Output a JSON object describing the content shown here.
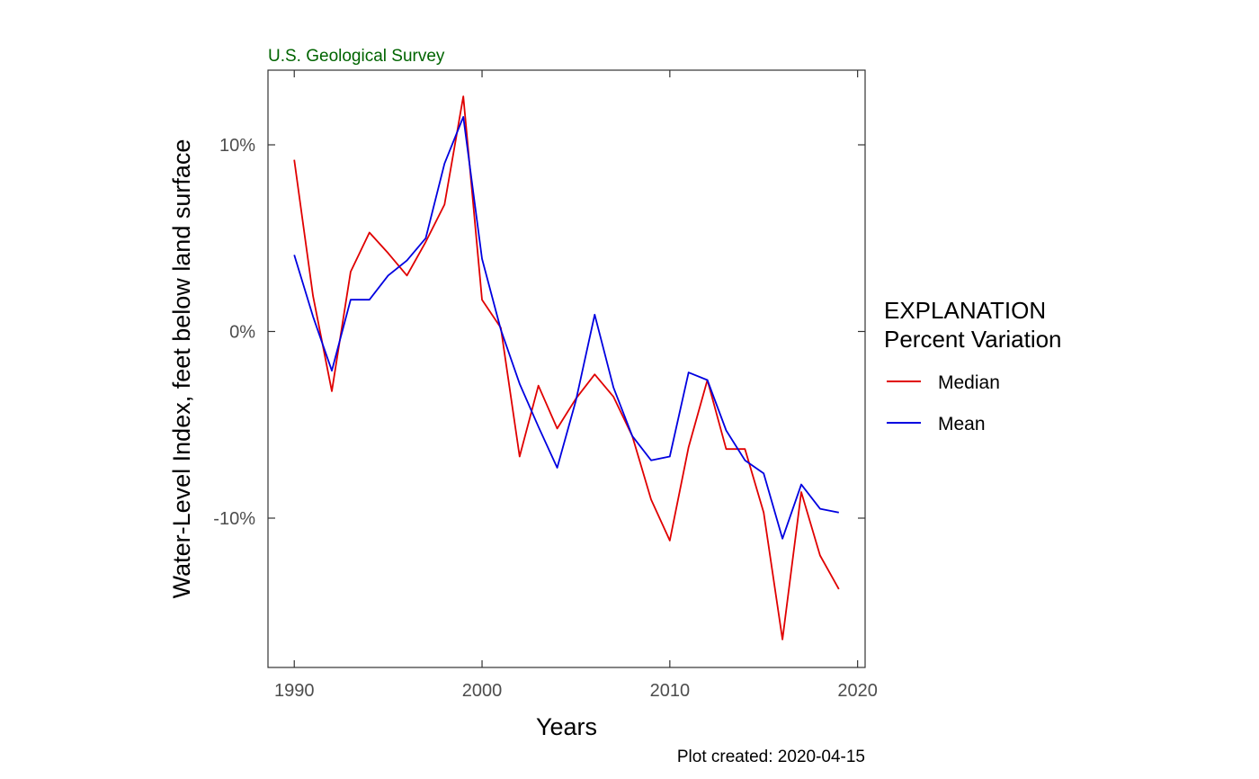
{
  "agency_label": "U.S. Geological Survey",
  "caption": "Plot created: 2020-04-15",
  "legend": {
    "title_line1": "EXPLANATION",
    "title_line2": "Percent Variation"
  },
  "chart_data": {
    "type": "line",
    "xlabel": "Years",
    "ylabel": "Water-Level Index, feet below land surface",
    "xlim": [
      1988.6,
      2020.4
    ],
    "ylim": [
      -18,
      14
    ],
    "x_ticks": [
      1990,
      2000,
      2010,
      2020
    ],
    "x_tick_labels": [
      "1990",
      "2000",
      "2010",
      "2020"
    ],
    "y_ticks": [
      10,
      0,
      -10
    ],
    "y_tick_labels": [
      "10%",
      "0%",
      "-10%"
    ],
    "grid": false,
    "legend_position": "right",
    "x": [
      1990,
      1991,
      1992,
      1993,
      1994,
      1995,
      1996,
      1997,
      1998,
      1999,
      2000,
      2001,
      2002,
      2003,
      2004,
      2005,
      2006,
      2007,
      2008,
      2009,
      2010,
      2011,
      2012,
      2013,
      2014,
      2015,
      2016,
      2017,
      2018,
      2019
    ],
    "series": [
      {
        "name": "Median",
        "color": "#e00000",
        "values": [
          9.2,
          1.9,
          -3.2,
          3.2,
          5.3,
          4.2,
          3.0,
          4.8,
          6.8,
          12.6,
          1.7,
          0.2,
          -6.7,
          -2.9,
          -5.2,
          -3.6,
          -2.3,
          -3.5,
          -5.6,
          -9.0,
          -11.2,
          -6.2,
          -2.6,
          -6.3,
          -6.3,
          -9.7,
          -16.5,
          -8.6,
          -12.0,
          -13.8
        ]
      },
      {
        "name": "Mean",
        "color": "#0000e0",
        "values": [
          4.1,
          0.8,
          -2.1,
          1.7,
          1.7,
          3.0,
          3.8,
          5.0,
          9.0,
          11.5,
          3.9,
          0.1,
          -2.8,
          -5.1,
          -7.3,
          -3.7,
          0.9,
          -3.0,
          -5.6,
          -6.9,
          -6.7,
          -2.2,
          -2.6,
          -5.3,
          -6.9,
          -7.6,
          -11.1,
          -8.2,
          -9.5,
          -9.7
        ]
      }
    ]
  }
}
